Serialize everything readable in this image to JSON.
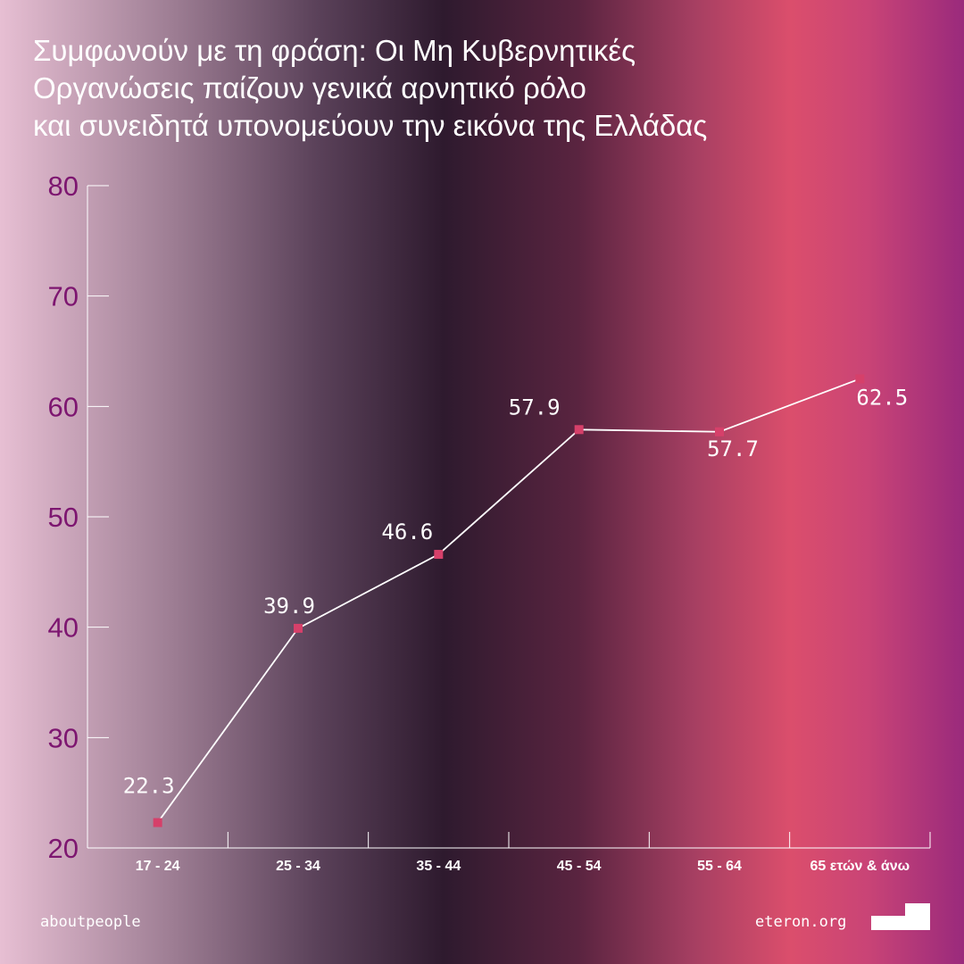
{
  "header": {
    "title_line1": "Συμφωνούν με τη φράση: Οι Μη Κυβερνητικές",
    "title_line2": "Οργανώσεις παίζουν γενικά αρνητικό ρόλο",
    "title_line3": "και συνειδητά υπονομεύουν την εικόνα της Ελλάδας"
  },
  "chart_data": {
    "type": "line",
    "categories": [
      "17 - 24",
      "25 - 34",
      "35 - 44",
      "45 - 54",
      "55 - 64",
      "65 ετών & άνω"
    ],
    "values": [
      22.3,
      39.9,
      46.6,
      57.9,
      57.7,
      62.5
    ],
    "value_labels": [
      "22.3",
      "39.9",
      "46.6",
      "57.9",
      "57.7",
      "62.5"
    ],
    "yticks": [
      "20",
      "30",
      "40",
      "50",
      "60",
      "70",
      "80"
    ],
    "ylim": [
      20,
      80
    ],
    "grid": false,
    "colors": {
      "line": "#ffffff",
      "marker": "#d6406a",
      "ytick": "#7d1670",
      "axis": "#ffffff",
      "label": "#ffffff"
    }
  },
  "footer": {
    "left": "aboutpeople",
    "right": "eteron.org",
    "logo_icon": "eteron-logo-icon"
  }
}
